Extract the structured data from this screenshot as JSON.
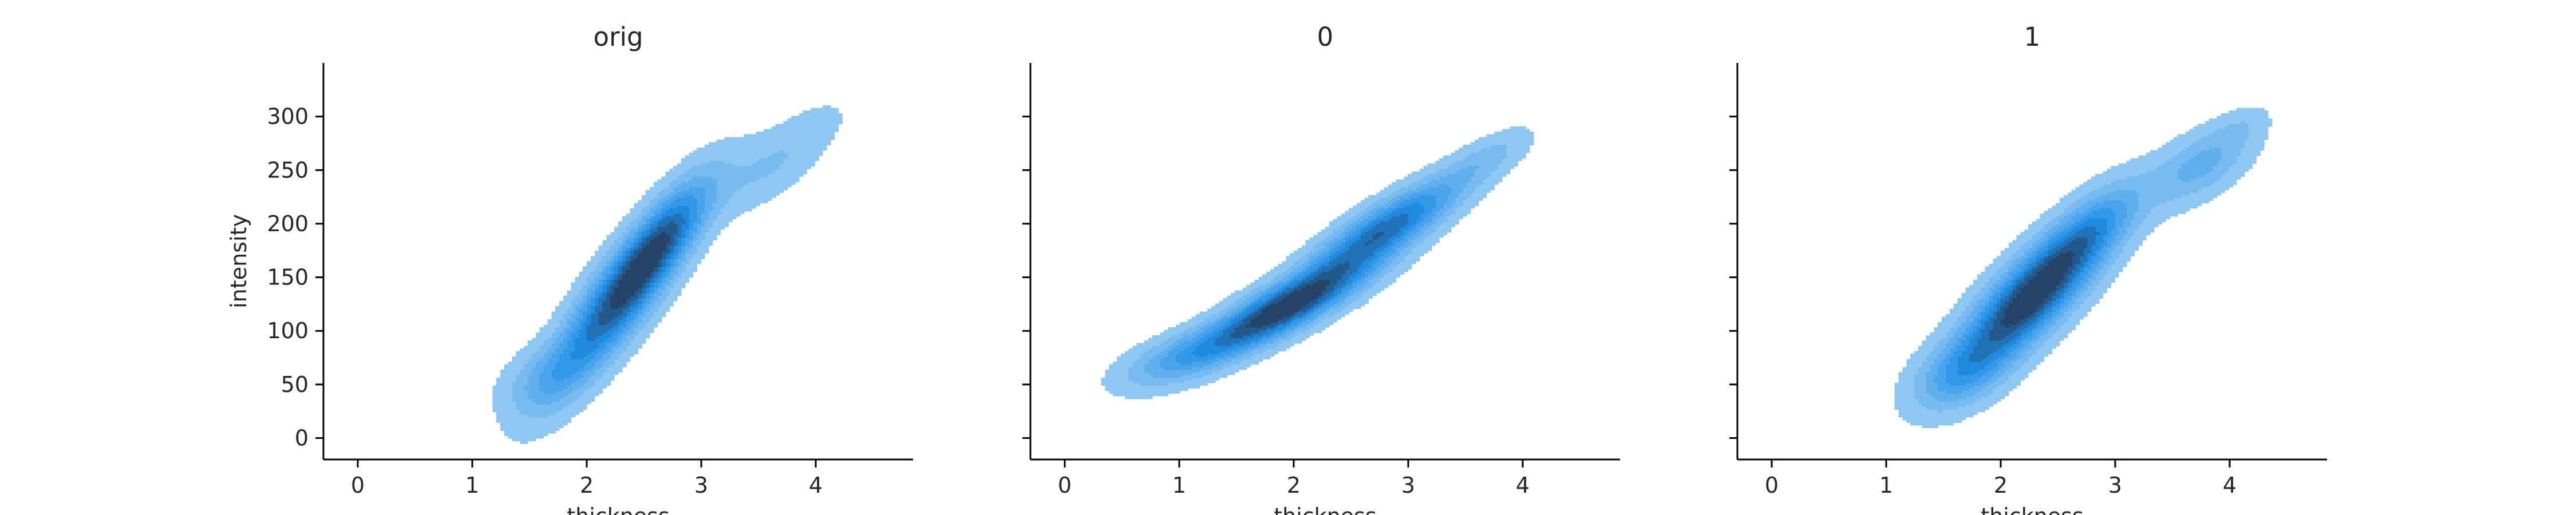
{
  "chart_data": [
    {
      "type": "kde2d",
      "title": "orig",
      "xlabel": "thickness",
      "ylabel": "intensity",
      "xlim": [
        -0.3,
        4.85
      ],
      "ylim": [
        -20,
        350
      ],
      "x_ticks": [
        0,
        1,
        2,
        3,
        4
      ],
      "y_ticks": [
        0,
        50,
        100,
        150,
        200,
        250,
        300
      ],
      "show_y_tick_labels": true,
      "fill_color": "#1f8fe6",
      "levels": 9,
      "components": [
        {
          "mean": [
            2.25,
            125
          ],
          "sd": [
            0.4,
            55
          ],
          "rho": 0.85,
          "weight": 1.0
        },
        {
          "mean": [
            2.65,
            185
          ],
          "sd": [
            0.3,
            40
          ],
          "rho": 0.8,
          "weight": 0.7
        },
        {
          "mean": [
            1.6,
            55
          ],
          "sd": [
            0.25,
            22
          ],
          "rho": 0.4,
          "weight": 0.25
        },
        {
          "mean": [
            3.6,
            255
          ],
          "sd": [
            0.35,
            30
          ],
          "rho": 0.7,
          "weight": 0.22
        },
        {
          "mean": [
            4.0,
            292
          ],
          "sd": [
            0.15,
            12
          ],
          "rho": 0.5,
          "weight": 0.08
        }
      ]
    },
    {
      "type": "kde2d",
      "title": "0",
      "xlabel": "thickness",
      "ylabel": "",
      "xlim": [
        -0.3,
        4.85
      ],
      "ylim": [
        -20,
        350
      ],
      "x_ticks": [
        0,
        1,
        2,
        3,
        4
      ],
      "y_ticks": [
        0,
        50,
        100,
        150,
        200,
        250,
        300
      ],
      "show_y_tick_labels": false,
      "fill_color": "#1f8fe6",
      "levels": 9,
      "components": [
        {
          "mean": [
            1.9,
            120
          ],
          "sd": [
            0.5,
            30
          ],
          "rho": 0.85,
          "weight": 1.0
        },
        {
          "mean": [
            2.8,
            195
          ],
          "sd": [
            0.45,
            32
          ],
          "rho": 0.85,
          "weight": 0.75
        },
        {
          "mean": [
            1.0,
            75
          ],
          "sd": [
            0.35,
            18
          ],
          "rho": 0.6,
          "weight": 0.3
        },
        {
          "mean": [
            3.7,
            262
          ],
          "sd": [
            0.25,
            18
          ],
          "rho": 0.7,
          "weight": 0.15
        }
      ]
    },
    {
      "type": "kde2d",
      "title": "1",
      "xlabel": "thickness",
      "ylabel": "",
      "xlim": [
        -0.3,
        4.85
      ],
      "ylim": [
        -20,
        350
      ],
      "x_ticks": [
        0,
        1,
        2,
        3,
        4
      ],
      "y_ticks": [
        0,
        50,
        100,
        150,
        200,
        250,
        300
      ],
      "show_y_tick_labels": false,
      "fill_color": "#1f8fe6",
      "levels": 9,
      "components": [
        {
          "mean": [
            2.25,
            130
          ],
          "sd": [
            0.42,
            45
          ],
          "rho": 0.8,
          "weight": 1.0
        },
        {
          "mean": [
            1.65,
            60
          ],
          "sd": [
            0.28,
            22
          ],
          "rho": 0.4,
          "weight": 0.3
        },
        {
          "mean": [
            2.8,
            195
          ],
          "sd": [
            0.3,
            30
          ],
          "rho": 0.7,
          "weight": 0.35
        },
        {
          "mean": [
            3.75,
            255
          ],
          "sd": [
            0.3,
            25
          ],
          "rho": 0.6,
          "weight": 0.3
        },
        {
          "mean": [
            4.1,
            290
          ],
          "sd": [
            0.15,
            12
          ],
          "rho": 0.5,
          "weight": 0.08
        }
      ]
    }
  ]
}
